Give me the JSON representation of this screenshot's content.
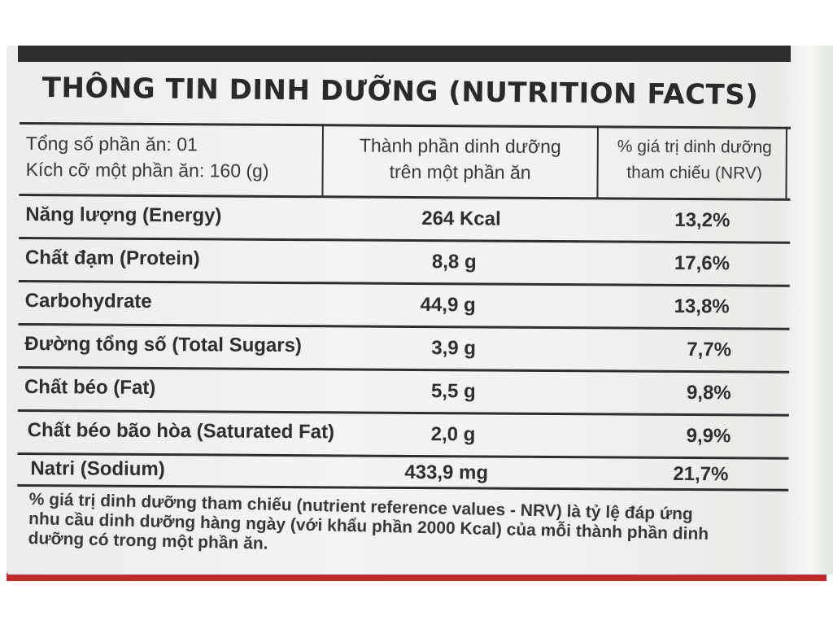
{
  "title": "THÔNG TIN DINH DƯỠNG (NUTRITION FACTS)",
  "header": {
    "servings": "Tổng số phần ăn: 01",
    "serving_size": "Kích cỡ một phần ăn: 160 (g)",
    "col2_line1": "Thành phần dinh dưỡng",
    "col2_line2": "trên một phần ăn",
    "col3_line1": "% giá trị dinh dưỡng",
    "col3_line2": "tham chiếu (NRV)"
  },
  "rows": [
    {
      "name": "Năng lượng (Energy)",
      "amount": "264 Kcal",
      "nrv": "13,2%"
    },
    {
      "name": "Chất đạm (Protein)",
      "amount": "8,8 g",
      "nrv": "17,6%"
    },
    {
      "name": "Carbohydrate",
      "amount": "44,9 g",
      "nrv": "13,8%"
    },
    {
      "name": "Đường tổng số (Total Sugars)",
      "amount": "3,9 g",
      "nrv": "7,7%"
    },
    {
      "name": "Chất béo (Fat)",
      "amount": "5,5 g",
      "nrv": "9,8%"
    },
    {
      "name": "Chất béo bão hòa (Saturated Fat)",
      "amount": "2,0 g",
      "nrv": "9,9%"
    },
    {
      "name": "Natri (Sodium)",
      "amount": "433,9 mg",
      "nrv": "21,7%"
    }
  ],
  "footnote": {
    "line1": "% giá trị dinh dưỡng tham chiếu (nutrient reference values - NRV) là tỷ lệ đáp ứng",
    "line2": "nhu cầu dinh dưỡng hàng ngày (với khẩu phần 2000 Kcal) của mỗi thành phần dinh",
    "line3": "dưỡng có trong một phần ăn."
  }
}
